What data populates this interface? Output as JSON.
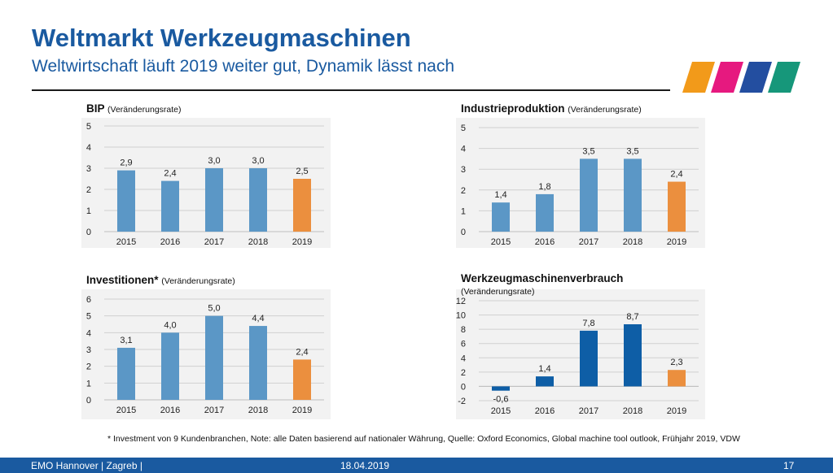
{
  "header": {
    "title": "Weltmarkt Werkzeugmaschinen",
    "subtitle": "Weltwirtschaft läuft 2019 weiter gut, Dynamik lässt nach"
  },
  "colors": {
    "brand_blue": "#1a5aa0",
    "bar_blue": "#5b97c6",
    "bar_dark_blue": "#0e5ea6",
    "bar_orange": "#eb8f3e",
    "logo_stripes": [
      "#f29a1a",
      "#e6197f",
      "#234ea0",
      "#16977a"
    ]
  },
  "chart_data": [
    {
      "id": "bip",
      "type": "bar",
      "title": "BIP",
      "subtitle": "(Veränderungsrate)",
      "categories": [
        "2015",
        "2016",
        "2017",
        "2018",
        "2019"
      ],
      "values": [
        2.9,
        2.4,
        3.0,
        3.0,
        2.5
      ],
      "data_labels": [
        "2,9",
        "2,4",
        "3,0",
        "3,0",
        "2,5"
      ],
      "bar_colors": [
        "#5b97c6",
        "#5b97c6",
        "#5b97c6",
        "#5b97c6",
        "#eb8f3e"
      ],
      "ylim": [
        0,
        5
      ],
      "yticks": [
        0,
        1,
        2,
        3,
        4,
        5
      ],
      "grid": true
    },
    {
      "id": "industrie",
      "type": "bar",
      "title": "Industrieproduktion",
      "subtitle": "(Veränderungsrate)",
      "categories": [
        "2015",
        "2016",
        "2017",
        "2018",
        "2019"
      ],
      "values": [
        1.4,
        1.8,
        3.5,
        3.5,
        2.4
      ],
      "data_labels": [
        "1,4",
        "1,8",
        "3,5",
        "3,5",
        "2,4"
      ],
      "bar_colors": [
        "#5b97c6",
        "#5b97c6",
        "#5b97c6",
        "#5b97c6",
        "#eb8f3e"
      ],
      "ylim": [
        0,
        5
      ],
      "yticks": [
        0,
        1,
        2,
        3,
        4,
        5
      ],
      "grid": true
    },
    {
      "id": "invest",
      "type": "bar",
      "title": "Investitionen*",
      "subtitle": "(Veränderungsrate)",
      "categories": [
        "2015",
        "2016",
        "2017",
        "2018",
        "2019"
      ],
      "values": [
        3.1,
        4.0,
        5.0,
        4.4,
        2.4
      ],
      "data_labels": [
        "3,1",
        "4,0",
        "5,0",
        "4,4",
        "2,4"
      ],
      "bar_colors": [
        "#5b97c6",
        "#5b97c6",
        "#5b97c6",
        "#5b97c6",
        "#eb8f3e"
      ],
      "ylim": [
        0,
        6
      ],
      "yticks": [
        0,
        1,
        2,
        3,
        4,
        5,
        6
      ],
      "grid": true
    },
    {
      "id": "wzm",
      "type": "bar",
      "title": "Werkzeugmaschinenverbrauch",
      "subtitle": "(Veränderungsrate)",
      "categories": [
        "2015",
        "2016",
        "2017",
        "2018",
        "2019"
      ],
      "values": [
        -0.6,
        1.4,
        7.8,
        8.7,
        2.3
      ],
      "data_labels": [
        "-0,6",
        "1,4",
        "7,8",
        "8,7",
        "2,3"
      ],
      "bar_colors": [
        "#0e5ea6",
        "#0e5ea6",
        "#0e5ea6",
        "#0e5ea6",
        "#eb8f3e"
      ],
      "ylim": [
        -2,
        12
      ],
      "yticks": [
        -2,
        0,
        2,
        4,
        6,
        8,
        10,
        12
      ],
      "grid": true
    }
  ],
  "footnote": "* Investment von 9 Kundenbranchen, Note: alle Daten basierend auf nationaler Währung, Quelle: Oxford Economics, Global machine tool outlook, Frühjahr 2019, VDW",
  "footer": {
    "left": "EMO Hannover | Zagreb |",
    "date": "18.04.2019",
    "page": "17"
  }
}
